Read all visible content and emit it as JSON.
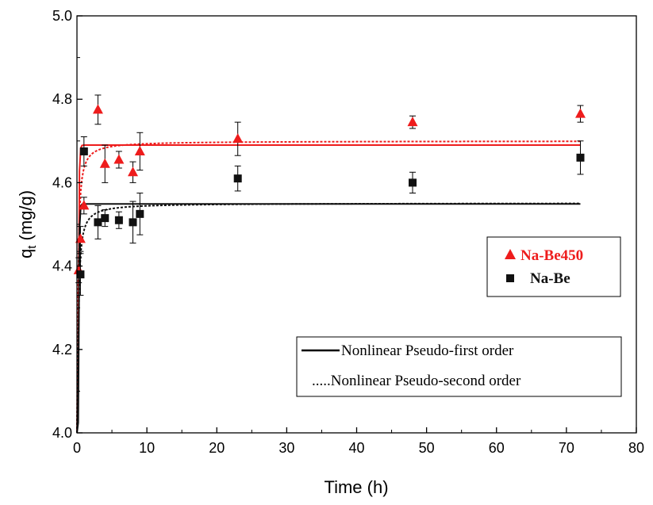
{
  "chart_data": {
    "type": "scatter",
    "title": "",
    "xlabel": "Time (h)",
    "ylabel_main": "q",
    "ylabel_sub": "t",
    "ylabel_unit": " (mg/g)",
    "xlim": [
      0,
      80
    ],
    "ylim": [
      4.0,
      5.0
    ],
    "x_ticks": [
      "0",
      "10",
      "20",
      "30",
      "40",
      "50",
      "60",
      "70",
      "80"
    ],
    "y_ticks": [
      "4.0",
      "4.2",
      "4.4",
      "4.6",
      "4.8",
      "5.0"
    ],
    "grid": false,
    "series": [
      {
        "name": "Na-Be450",
        "marker": "triangle",
        "color": "#ee1c1c",
        "points": [
          {
            "x": 0.25,
            "y": 4.39,
            "err": 0.03
          },
          {
            "x": 0.5,
            "y": 4.465,
            "err": 0.03
          },
          {
            "x": 1,
            "y": 4.545,
            "err": 0.02
          },
          {
            "x": 3,
            "y": 4.775,
            "err": 0.035
          },
          {
            "x": 4,
            "y": 4.645,
            "err": 0.045
          },
          {
            "x": 6,
            "y": 4.655,
            "err": 0.02
          },
          {
            "x": 8,
            "y": 4.625,
            "err": 0.025
          },
          {
            "x": 9,
            "y": 4.675,
            "err": 0.045
          },
          {
            "x": 23,
            "y": 4.705,
            "err": 0.04
          },
          {
            "x": 48,
            "y": 4.745,
            "err": 0.015
          },
          {
            "x": 72,
            "y": 4.765,
            "err": 0.02
          }
        ]
      },
      {
        "name": "Na-Be",
        "marker": "square",
        "color": "#111111",
        "points": [
          {
            "x": 0.5,
            "y": 4.38,
            "err": 0.05
          },
          {
            "x": 1,
            "y": 4.675,
            "err": 0.035
          },
          {
            "x": 3,
            "y": 4.505,
            "err": 0.04
          },
          {
            "x": 4,
            "y": 4.515,
            "err": 0.02
          },
          {
            "x": 6,
            "y": 4.51,
            "err": 0.02
          },
          {
            "x": 8,
            "y": 4.505,
            "err": 0.05
          },
          {
            "x": 9,
            "y": 4.525,
            "err": 0.05
          },
          {
            "x": 23,
            "y": 4.61,
            "err": 0.03
          },
          {
            "x": 48,
            "y": 4.6,
            "err": 0.025
          },
          {
            "x": 72,
            "y": 4.66,
            "err": 0.04
          }
        ]
      }
    ],
    "fits": [
      {
        "model": "Nonlinear Pseudo-first order",
        "series": "Na-Be450",
        "style": "solid",
        "color": "#ee1c1c",
        "qe": 4.69,
        "k": 12,
        "x_end": 72
      },
      {
        "model": "Nonlinear Pseudo-second order",
        "series": "Na-Be450",
        "style": "dotted",
        "color": "#ee1c1c",
        "qe": 4.7,
        "k": 15,
        "x_end": 72
      },
      {
        "model": "Nonlinear Pseudo-first order",
        "series": "Na-Be",
        "style": "solid",
        "color": "#111111",
        "qe": 4.549,
        "k": 12,
        "x_end": 72
      },
      {
        "model": "Nonlinear Pseudo-second order",
        "series": "Na-Be",
        "style": "dotted",
        "color": "#111111",
        "qe": 4.551,
        "k": 15,
        "x_end": 72
      }
    ],
    "legend_markers": {
      "placement": "right",
      "entries": [
        {
          "label": "Na-Be450",
          "marker": "triangle",
          "color": "#ee1c1c"
        },
        {
          "label": "Na-Be",
          "marker": "square",
          "color": "#111111"
        }
      ]
    },
    "legend_lines": {
      "placement": "bottom-right",
      "entries": [
        {
          "label": "Nonlinear Pseudo-first order",
          "style": "solid"
        },
        {
          "label": ".....Nonlinear Pseudo-second order",
          "style": "dotted"
        }
      ]
    }
  }
}
